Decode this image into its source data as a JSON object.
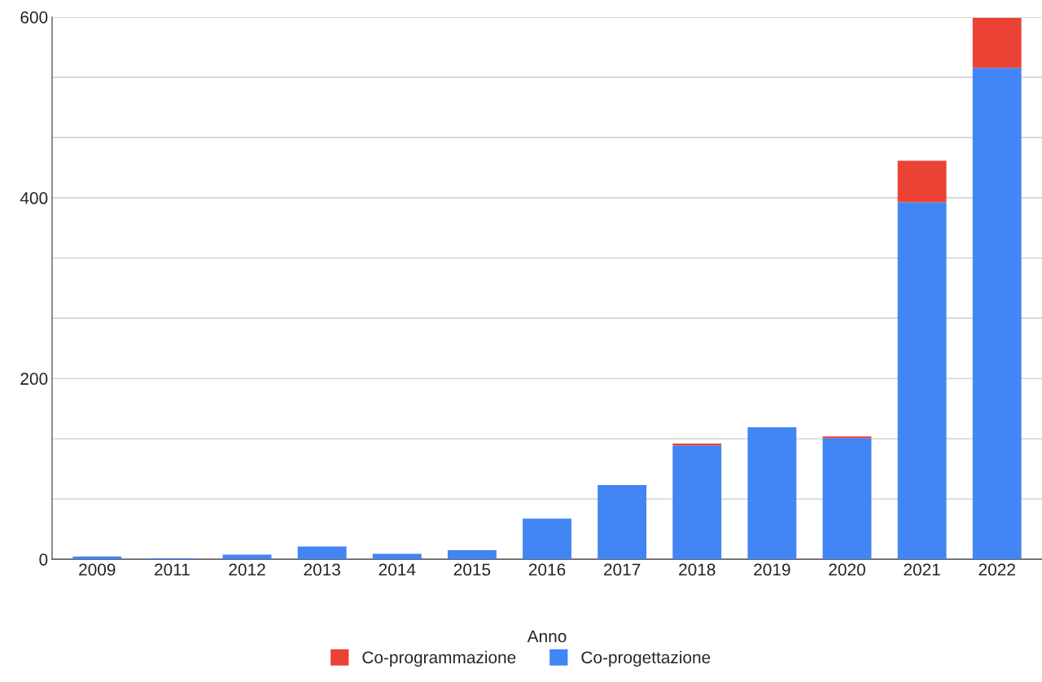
{
  "chart_data": {
    "type": "bar",
    "stacked": true,
    "xlabel": "Anno",
    "categories": [
      "2009",
      "2011",
      "2012",
      "2013",
      "2014",
      "2015",
      "2016",
      "2017",
      "2018",
      "2019",
      "2020",
      "2021",
      "2022"
    ],
    "series": [
      {
        "name": "Co-progettazione",
        "color": "#4285f4",
        "values": [
          3,
          1,
          5,
          14,
          6,
          10,
          45,
          82,
          126,
          146,
          134,
          395,
          544
        ]
      },
      {
        "name": "Co-programmazione",
        "color": "#ea4335",
        "values": [
          null,
          null,
          null,
          null,
          null,
          null,
          null,
          null,
          2,
          null,
          2,
          46,
          55
        ]
      }
    ],
    "ylim": [
      0,
      600
    ],
    "yticks": [
      0,
      {
        "value": 66.7,
        "label": null
      },
      {
        "value": 133.3,
        "label": null
      },
      200,
      {
        "value": 266.7,
        "label": null
      },
      {
        "value": 333.3,
        "label": null
      },
      400,
      {
        "value": 466.7,
        "label": null
      },
      {
        "value": 533.3,
        "label": null
      },
      600
    ],
    "grid": "y",
    "legend": "bottom"
  }
}
